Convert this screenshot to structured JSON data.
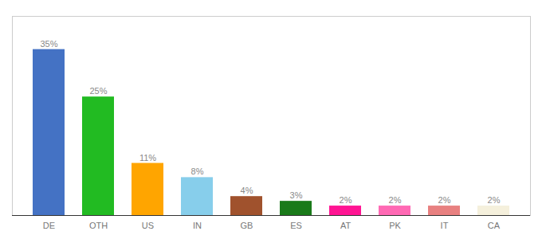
{
  "chart_data": {
    "type": "bar",
    "categories": [
      "DE",
      "OTH",
      "US",
      "IN",
      "GB",
      "ES",
      "AT",
      "PK",
      "IT",
      "CA"
    ],
    "values": [
      35,
      25,
      11,
      8,
      4,
      3,
      2,
      2,
      2,
      2
    ],
    "value_labels": [
      "35%",
      "25%",
      "11%",
      "8%",
      "4%",
      "3%",
      "2%",
      "2%",
      "2%",
      "2%"
    ],
    "colors": [
      "#4472c4",
      "#22bb22",
      "#ffa500",
      "#87ceeb",
      "#a0522d",
      "#1a7a1a",
      "#ff1493",
      "#ff69b4",
      "#e88080",
      "#f5f0dc"
    ],
    "data_labels": true,
    "ylim": [
      0,
      42
    ],
    "tick_labels": "x"
  }
}
